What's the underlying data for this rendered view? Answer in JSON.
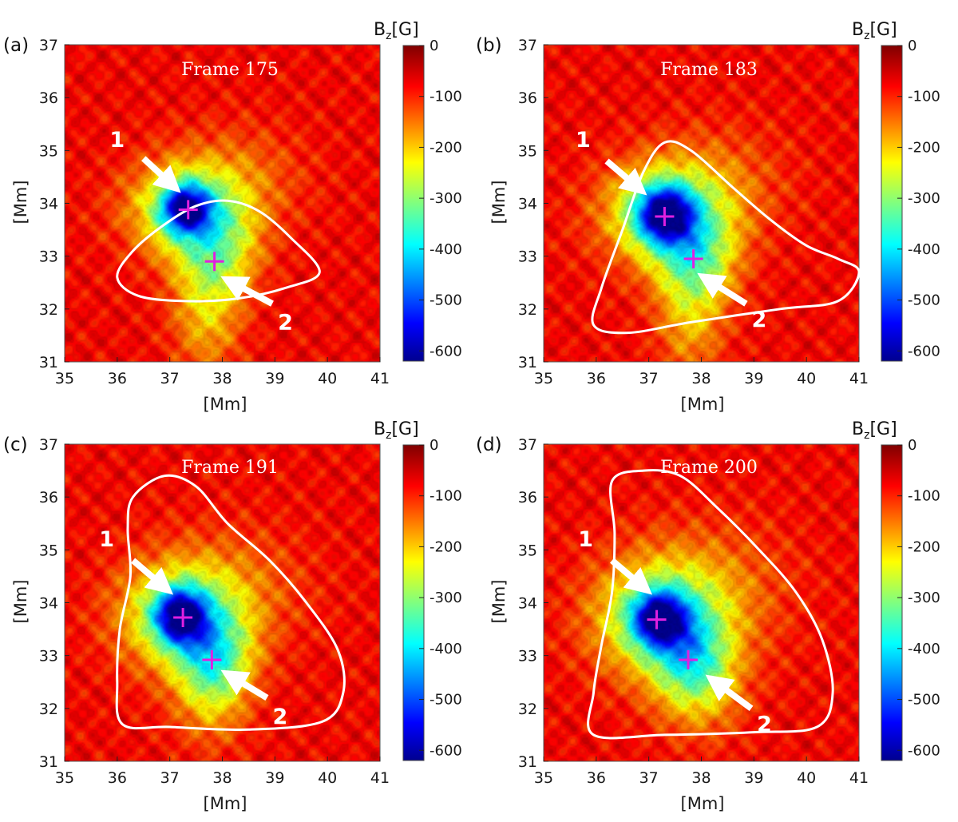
{
  "chart_data": [
    {
      "type": "heatmap",
      "panel_label": "(a)",
      "frame_label": "Frame 175",
      "xlabel": "[Mm]",
      "ylabel": "[Mm]",
      "xlim": [
        35,
        41
      ],
      "ylim": [
        31,
        37
      ],
      "x_ticks": [
        "35",
        "36",
        "37",
        "38",
        "39",
        "40",
        "41"
      ],
      "y_ticks": [
        "31",
        "32",
        "33",
        "34",
        "35",
        "36",
        "37"
      ],
      "colorbar": {
        "title_main": "B",
        "title_sub": "z",
        "title_unit": "[G]",
        "range": [
          -620,
          0
        ],
        "ticks": [
          "0",
          "-100",
          "-200",
          "-300",
          "-400",
          "-500",
          "-600"
        ]
      },
      "background_field_G": -80,
      "blobs": [
        {
          "x": 37.3,
          "y": 33.9,
          "sx": 0.75,
          "sy": 0.6,
          "amp": -210
        },
        {
          "x": 37.3,
          "y": 33.9,
          "sx": 0.32,
          "sy": 0.32,
          "amp": -330
        },
        {
          "x": 37.9,
          "y": 33.1,
          "sx": 0.55,
          "sy": 0.65,
          "amp": -160
        },
        {
          "x": 37.7,
          "y": 31.9,
          "sx": 0.45,
          "sy": 0.8,
          "amp": -110
        },
        {
          "x": 38.3,
          "y": 34.5,
          "sx": 0.9,
          "sy": 0.7,
          "amp": -60
        }
      ],
      "markers": [
        {
          "label": "1",
          "x": 37.35,
          "y": 33.88
        },
        {
          "label": "2",
          "x": 37.85,
          "y": 32.9
        }
      ],
      "arrows": [
        {
          "label": "1",
          "tail": [
            36.5,
            34.85
          ],
          "head": [
            37.1,
            34.3
          ],
          "text_at": [
            36.0,
            35.2
          ]
        },
        {
          "label": "2",
          "tail": [
            38.95,
            32.1
          ],
          "head": [
            38.1,
            32.55
          ],
          "text_at": [
            39.2,
            31.75
          ]
        }
      ],
      "contour": [
        [
          36.0,
          32.6
        ],
        [
          36.3,
          33.1
        ],
        [
          36.9,
          33.6
        ],
        [
          37.5,
          33.95
        ],
        [
          38.1,
          34.05
        ],
        [
          38.7,
          33.85
        ],
        [
          39.3,
          33.35
        ],
        [
          39.85,
          32.7
        ],
        [
          39.2,
          32.4
        ],
        [
          38.3,
          32.2
        ],
        [
          37.3,
          32.15
        ],
        [
          36.4,
          32.25
        ]
      ]
    },
    {
      "type": "heatmap",
      "panel_label": "(b)",
      "frame_label": "Frame 183",
      "xlabel": "[Mm]",
      "ylabel": "[Mm]",
      "xlim": [
        35,
        41
      ],
      "ylim": [
        31,
        37
      ],
      "x_ticks": [
        "35",
        "36",
        "37",
        "38",
        "39",
        "40",
        "41"
      ],
      "y_ticks": [
        "31",
        "32",
        "33",
        "34",
        "35",
        "36",
        "37"
      ],
      "colorbar": {
        "title_main": "B",
        "title_sub": "z",
        "title_unit": "[G]",
        "range": [
          -620,
          0
        ],
        "ticks": [
          "0",
          "-100",
          "-200",
          "-300",
          "-400",
          "-500",
          "-600"
        ]
      },
      "background_field_G": -80,
      "blobs": [
        {
          "x": 37.3,
          "y": 33.8,
          "sx": 0.8,
          "sy": 0.65,
          "amp": -220
        },
        {
          "x": 37.3,
          "y": 33.8,
          "sx": 0.38,
          "sy": 0.38,
          "amp": -350
        },
        {
          "x": 37.9,
          "y": 33.0,
          "sx": 0.55,
          "sy": 0.6,
          "amp": -170
        },
        {
          "x": 37.8,
          "y": 31.9,
          "sx": 0.45,
          "sy": 0.8,
          "amp": -110
        },
        {
          "x": 38.3,
          "y": 34.4,
          "sx": 0.95,
          "sy": 0.75,
          "amp": -60
        }
      ],
      "markers": [
        {
          "label": "1",
          "x": 37.3,
          "y": 33.75
        },
        {
          "label": "2",
          "x": 37.85,
          "y": 32.95
        }
      ],
      "arrows": [
        {
          "label": "1",
          "tail": [
            36.2,
            34.8
          ],
          "head": [
            36.85,
            34.25
          ],
          "text_at": [
            35.75,
            35.2
          ]
        },
        {
          "label": "2",
          "tail": [
            38.85,
            32.1
          ],
          "head": [
            38.05,
            32.6
          ],
          "text_at": [
            39.1,
            31.8
          ]
        }
      ],
      "contour": [
        [
          35.95,
          31.7
        ],
        [
          36.1,
          32.4
        ],
        [
          36.5,
          33.5
        ],
        [
          36.9,
          34.6
        ],
        [
          37.3,
          35.15
        ],
        [
          37.8,
          35.0
        ],
        [
          38.6,
          34.3
        ],
        [
          39.3,
          33.7
        ],
        [
          40.0,
          33.2
        ],
        [
          40.6,
          32.95
        ],
        [
          41.0,
          32.7
        ],
        [
          40.6,
          32.15
        ],
        [
          39.5,
          32.0
        ],
        [
          37.8,
          31.75
        ],
        [
          36.6,
          31.55
        ]
      ]
    },
    {
      "type": "heatmap",
      "panel_label": "(c)",
      "frame_label": "Frame 191",
      "xlabel": "[Mm]",
      "ylabel": "[Mm]",
      "xlim": [
        35,
        41
      ],
      "ylim": [
        31,
        37
      ],
      "x_ticks": [
        "35",
        "36",
        "37",
        "38",
        "39",
        "40",
        "41"
      ],
      "y_ticks": [
        "31",
        "32",
        "33",
        "34",
        "35",
        "36",
        "37"
      ],
      "colorbar": {
        "title_main": "B",
        "title_sub": "z",
        "title_unit": "[G]",
        "range": [
          -620,
          0
        ],
        "ticks": [
          "0",
          "-100",
          "-200",
          "-300",
          "-400",
          "-500",
          "-600"
        ]
      },
      "background_field_G": -80,
      "blobs": [
        {
          "x": 37.2,
          "y": 33.75,
          "sx": 0.8,
          "sy": 0.7,
          "amp": -220
        },
        {
          "x": 37.2,
          "y": 33.75,
          "sx": 0.34,
          "sy": 0.36,
          "amp": -350
        },
        {
          "x": 37.85,
          "y": 33.0,
          "sx": 0.5,
          "sy": 0.6,
          "amp": -170
        },
        {
          "x": 37.8,
          "y": 32.3,
          "sx": 0.5,
          "sy": 0.7,
          "amp": -100
        },
        {
          "x": 38.2,
          "y": 34.3,
          "sx": 1.0,
          "sy": 0.8,
          "amp": -60
        }
      ],
      "markers": [
        {
          "label": "1",
          "x": 37.25,
          "y": 33.72
        },
        {
          "label": "2",
          "x": 37.8,
          "y": 32.92
        }
      ],
      "arrows": [
        {
          "label": "1",
          "tail": [
            36.3,
            34.8
          ],
          "head": [
            36.95,
            34.25
          ],
          "text_at": [
            35.8,
            35.2
          ]
        },
        {
          "label": "2",
          "tail": [
            38.85,
            32.2
          ],
          "head": [
            38.1,
            32.65
          ],
          "text_at": [
            39.1,
            31.85
          ]
        }
      ],
      "contour": [
        [
          36.1,
          31.7
        ],
        [
          36.0,
          32.5
        ],
        [
          36.05,
          33.5
        ],
        [
          36.25,
          34.5
        ],
        [
          36.2,
          35.4
        ],
        [
          36.3,
          36.0
        ],
        [
          36.9,
          36.4
        ],
        [
          37.5,
          36.2
        ],
        [
          38.1,
          35.5
        ],
        [
          38.9,
          34.8
        ],
        [
          39.6,
          34.0
        ],
        [
          40.2,
          33.1
        ],
        [
          40.3,
          32.3
        ],
        [
          39.9,
          31.75
        ],
        [
          38.5,
          31.6
        ],
        [
          37.0,
          31.65
        ]
      ]
    },
    {
      "type": "heatmap",
      "panel_label": "(d)",
      "frame_label": "Frame 200",
      "xlabel": "[Mm]",
      "ylabel": "[Mm]",
      "xlim": [
        35,
        41
      ],
      "ylim": [
        31,
        37
      ],
      "x_ticks": [
        "35",
        "36",
        "37",
        "38",
        "39",
        "40",
        "41"
      ],
      "y_ticks": [
        "31",
        "32",
        "33",
        "34",
        "35",
        "36",
        "37"
      ],
      "colorbar": {
        "title_main": "B",
        "title_sub": "z",
        "title_unit": "[G]",
        "range": [
          -620,
          0
        ],
        "ticks": [
          "0",
          "-100",
          "-200",
          "-300",
          "-400",
          "-500",
          "-600"
        ]
      },
      "background_field_G": -80,
      "blobs": [
        {
          "x": 37.2,
          "y": 33.7,
          "sx": 0.85,
          "sy": 0.75,
          "amp": -230
        },
        {
          "x": 37.2,
          "y": 33.7,
          "sx": 0.36,
          "sy": 0.36,
          "amp": -340
        },
        {
          "x": 37.8,
          "y": 32.95,
          "sx": 0.5,
          "sy": 0.6,
          "amp": -160
        },
        {
          "x": 38.0,
          "y": 32.4,
          "sx": 0.6,
          "sy": 0.7,
          "amp": -90
        },
        {
          "x": 38.2,
          "y": 34.3,
          "sx": 1.1,
          "sy": 0.9,
          "amp": -65
        }
      ],
      "markers": [
        {
          "label": "1",
          "x": 37.15,
          "y": 33.68
        },
        {
          "label": "2",
          "x": 37.75,
          "y": 32.92
        }
      ],
      "arrows": [
        {
          "label": "1",
          "tail": [
            36.3,
            34.8
          ],
          "head": [
            36.95,
            34.25
          ],
          "text_at": [
            35.8,
            35.2
          ]
        },
        {
          "label": "2",
          "tail": [
            38.95,
            32.0
          ],
          "head": [
            38.2,
            32.55
          ],
          "text_at": [
            39.2,
            31.7
          ]
        }
      ],
      "contour": [
        [
          35.95,
          31.5
        ],
        [
          35.95,
          32.3
        ],
        [
          36.1,
          33.2
        ],
        [
          36.3,
          34.2
        ],
        [
          36.35,
          35.3
        ],
        [
          36.3,
          36.3
        ],
        [
          36.9,
          36.5
        ],
        [
          37.6,
          36.4
        ],
        [
          38.3,
          35.8
        ],
        [
          39.1,
          35.0
        ],
        [
          39.8,
          34.2
        ],
        [
          40.3,
          33.3
        ],
        [
          40.5,
          32.3
        ],
        [
          40.2,
          31.65
        ],
        [
          39.0,
          31.55
        ],
        [
          37.3,
          31.5
        ]
      ]
    }
  ]
}
